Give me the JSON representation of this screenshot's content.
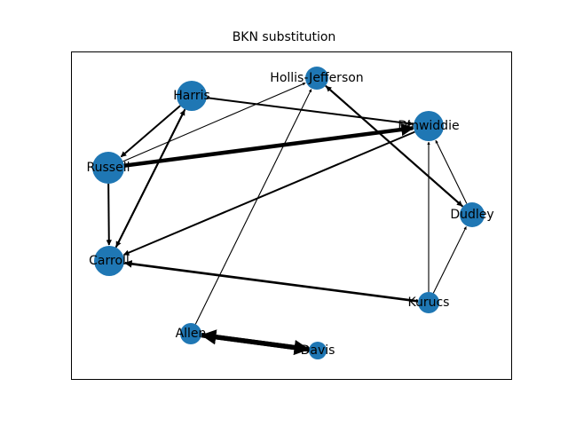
{
  "title": "BKN substitution",
  "colors": {
    "node": "#1f77b4",
    "edge": "#000000",
    "frame": "#000000"
  },
  "nodes": [
    {
      "id": "harris",
      "label": "Harris"
    },
    {
      "id": "hollis",
      "label": "Hollis-Jefferson"
    },
    {
      "id": "dinwiddie",
      "label": "Dinwiddie"
    },
    {
      "id": "russell",
      "label": "Russell"
    },
    {
      "id": "dudley",
      "label": "Dudley"
    },
    {
      "id": "carroll",
      "label": "Carroll"
    },
    {
      "id": "kurucs",
      "label": "Kurucs"
    },
    {
      "id": "allen",
      "label": "Allen"
    },
    {
      "id": "davis",
      "label": "Davis"
    }
  ],
  "edges": [
    {
      "from": "harris",
      "to": "dinwiddie",
      "weight": 2
    },
    {
      "from": "russell",
      "to": "dinwiddie",
      "weight": 5
    },
    {
      "from": "russell",
      "to": "hollis",
      "weight": 1
    },
    {
      "from": "harris",
      "to": "russell",
      "weight": 2
    },
    {
      "from": "russell",
      "to": "carroll",
      "weight": 2
    },
    {
      "from": "harris",
      "to": "carroll",
      "weight": 2
    },
    {
      "from": "carroll",
      "to": "harris",
      "weight": 2
    },
    {
      "from": "dinwiddie",
      "to": "carroll",
      "weight": 2
    },
    {
      "from": "hollis",
      "to": "dudley",
      "weight": 2
    },
    {
      "from": "dudley",
      "to": "hollis",
      "weight": 2
    },
    {
      "from": "dudley",
      "to": "dinwiddie",
      "weight": 1
    },
    {
      "from": "kurucs",
      "to": "dinwiddie",
      "weight": 1
    },
    {
      "from": "kurucs",
      "to": "dudley",
      "weight": 1
    },
    {
      "from": "kurucs",
      "to": "carroll",
      "weight": 3
    },
    {
      "from": "allen",
      "to": "hollis",
      "weight": 1
    },
    {
      "from": "allen",
      "to": "davis",
      "weight": 6
    },
    {
      "from": "davis",
      "to": "allen",
      "weight": 6
    }
  ]
}
